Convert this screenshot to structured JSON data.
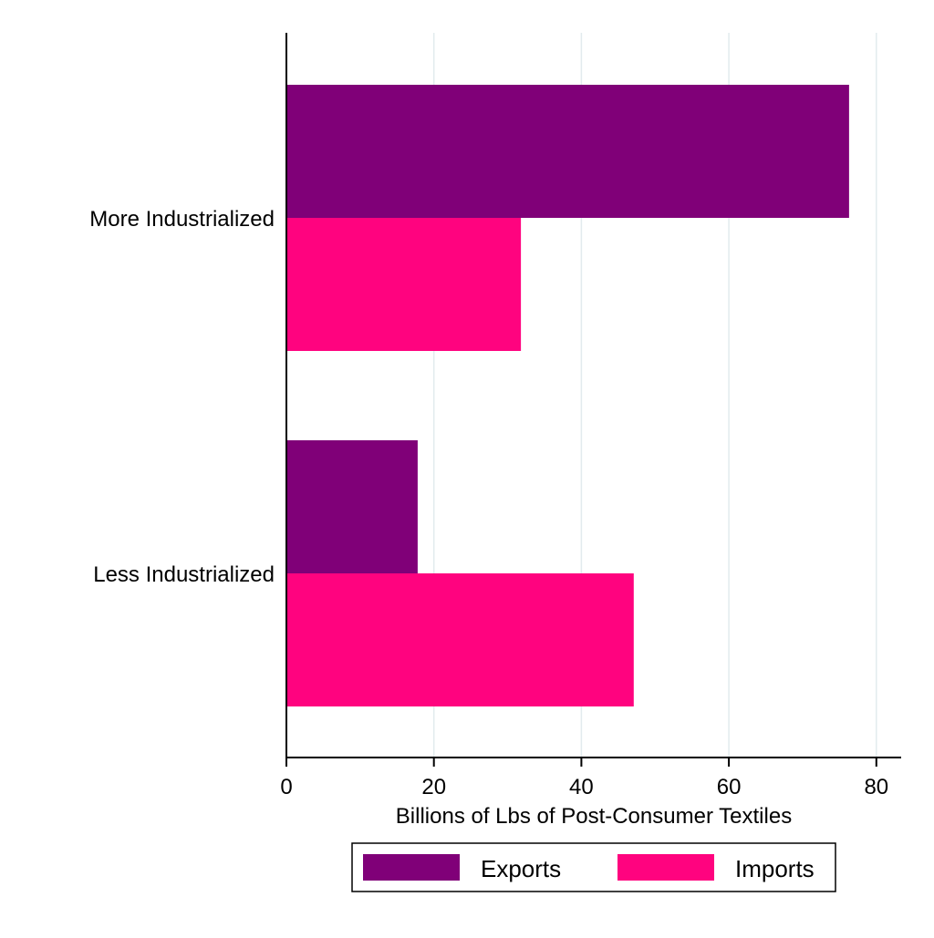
{
  "chart_data": {
    "type": "bar",
    "orientation": "horizontal",
    "categories": [
      "More Industrialized",
      "Less Industrialized"
    ],
    "series": [
      {
        "name": "Exports",
        "color": "#800078",
        "values": [
          76.3,
          17.8
        ]
      },
      {
        "name": "Imports",
        "color": "#FF037F",
        "values": [
          31.8,
          47.1
        ]
      }
    ],
    "xlabel": "Billions of Lbs of Post-Consumer Textiles",
    "ylabel": "",
    "xlim": [
      0,
      83
    ],
    "xticks": [
      0,
      20,
      40,
      60,
      80
    ],
    "grid": true,
    "legend": {
      "position": "bottom",
      "entries": [
        "Exports",
        "Imports"
      ]
    }
  },
  "colors": {
    "grid": "#E2EBEE",
    "axis": "#000000",
    "background": "#FFFFFF"
  }
}
